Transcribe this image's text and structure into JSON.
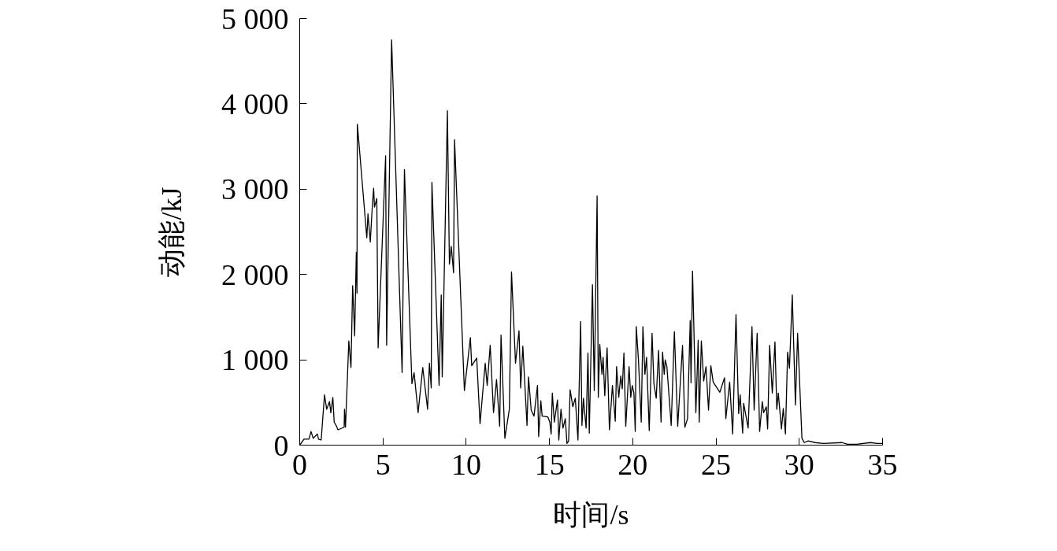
{
  "chart_data": {
    "type": "line",
    "xlabel": "时间/s",
    "ylabel": "动能/kJ",
    "xlim": [
      0,
      35
    ],
    "ylim": [
      0,
      5000
    ],
    "xticks": [
      0,
      5,
      10,
      15,
      20,
      25,
      30,
      35
    ],
    "yticks": [
      0,
      {
        "value": 1000,
        "label": "1 000"
      },
      {
        "value": 2000,
        "label": "2 000"
      },
      {
        "value": 3000,
        "label": "3 000"
      },
      {
        "value": 4000,
        "label": "4 000"
      },
      {
        "value": 5000,
        "label": "5 000"
      }
    ],
    "grid": false,
    "line_style": "solid",
    "series": [
      {
        "color": "#000000",
        "x": [
          0,
          0.26,
          0.56,
          0.68,
          0.81,
          1.06,
          1.13,
          1.29,
          1.49,
          1.62,
          1.79,
          1.87,
          1.99,
          2.07,
          2.19,
          2.3,
          2.67,
          2.69,
          2.75,
          2.95,
          3.08,
          3.18,
          3.3,
          3.4,
          3.44,
          3.46,
          3.55,
          4.03,
          4.1,
          4.24,
          4.36,
          4.44,
          4.49,
          4.63,
          4.71,
          5.16,
          5.22,
          5.52,
          6.15,
          6.29,
          6.74,
          6.87,
          7.11,
          7.39,
          7.68,
          7.79,
          7.9,
          7.94,
          8.37,
          8.5,
          8.56,
          8.87,
          8.99,
          9.1,
          9.24,
          9.3,
          9.89,
          10.25,
          10.33,
          10.63,
          10.83,
          11.14,
          11.26,
          11.44,
          11.64,
          11.82,
          12.01,
          12.09,
          12.32,
          12.59,
          12.72,
          12.96,
          13.17,
          13.27,
          13.4,
          13.65,
          13.74,
          13.9,
          14.07,
          14.28,
          14.35,
          14.48,
          14.56,
          14.9,
          15.02,
          15.1,
          15.17,
          15.29,
          15.48,
          15.56,
          15.69,
          15.81,
          15.95,
          16.05,
          16.15,
          16.24,
          16.4,
          16.55,
          16.71,
          16.87,
          16.95,
          17.04,
          17.11,
          17.2,
          17.31,
          17.39,
          17.58,
          17.69,
          17.86,
          17.93,
          18.02,
          18.15,
          18.22,
          18.32,
          18.46,
          18.6,
          18.78,
          18.95,
          19.03,
          19.16,
          19.28,
          19.37,
          19.47,
          19.58,
          19.78,
          19.88,
          19.97,
          20.07,
          20.15,
          20.21,
          20.34,
          20.51,
          20.61,
          20.73,
          20.83,
          20.99,
          21.16,
          21.27,
          21.41,
          21.55,
          21.7,
          21.79,
          21.89,
          21.95,
          22.05,
          22.31,
          22.5,
          22.7,
          22.99,
          23.13,
          23.29,
          23.45,
          23.5,
          23.59,
          23.79,
          23.93,
          23.99,
          24.12,
          24.26,
          24.4,
          24.55,
          24.69,
          24.83,
          25.23,
          25.51,
          25.59,
          25.82,
          26.0,
          26.2,
          26.36,
          26.45,
          26.6,
          26.66,
          26.93,
          27.16,
          27.29,
          27.47,
          27.62,
          27.78,
          27.86,
          28.02,
          28.1,
          28.22,
          28.38,
          28.54,
          28.65,
          28.74,
          28.93,
          29.04,
          29.17,
          29.3,
          29.41,
          29.58,
          29.77,
          29.9,
          30.16,
          30.3,
          30.54,
          30.95,
          31.44,
          32.57,
          32.89,
          33.46,
          34.27,
          34.68,
          35.0
        ],
        "values": [
          0,
          70,
          70,
          160,
          80,
          130,
          70,
          60,
          590,
          420,
          510,
          380,
          560,
          270,
          230,
          180,
          210,
          420,
          210,
          1220,
          910,
          1870,
          1280,
          2260,
          1780,
          3760,
          3560,
          2430,
          2710,
          2380,
          2800,
          3010,
          2790,
          2890,
          1140,
          3390,
          1170,
          4750,
          850,
          3230,
          720,
          850,
          380,
          910,
          420,
          960,
          670,
          3080,
          700,
          1760,
          800,
          3920,
          2120,
          2330,
          2020,
          3580,
          640,
          1260,
          930,
          1020,
          250,
          960,
          700,
          1170,
          380,
          770,
          220,
          1290,
          80,
          420,
          2030,
          960,
          1340,
          670,
          1160,
          230,
          800,
          410,
          340,
          700,
          100,
          520,
          340,
          330,
          270,
          130,
          610,
          270,
          530,
          60,
          420,
          200,
          310,
          20,
          50,
          650,
          450,
          550,
          60,
          1450,
          230,
          550,
          390,
          200,
          1080,
          140,
          1880,
          640,
          2920,
          560,
          1180,
          830,
          1030,
          580,
          1140,
          180,
          700,
          280,
          920,
          560,
          810,
          660,
          1080,
          220,
          920,
          560,
          700,
          610,
          160,
          1390,
          1010,
          270,
          1390,
          830,
          1030,
          170,
          1310,
          720,
          550,
          1110,
          270,
          1090,
          830,
          1000,
          920,
          230,
          1330,
          220,
          1170,
          210,
          310,
          1460,
          730,
          2040,
          380,
          1230,
          270,
          1220,
          750,
          920,
          410,
          930,
          740,
          620,
          790,
          310,
          740,
          130,
          1530,
          370,
          590,
          140,
          490,
          200,
          1390,
          410,
          1310,
          160,
          510,
          380,
          450,
          190,
          1170,
          610,
          1210,
          420,
          610,
          190,
          430,
          130,
          1090,
          900,
          1760,
          470,
          1310,
          80,
          30,
          50,
          30,
          20,
          30,
          10,
          10,
          30,
          20,
          20
        ]
      }
    ]
  }
}
